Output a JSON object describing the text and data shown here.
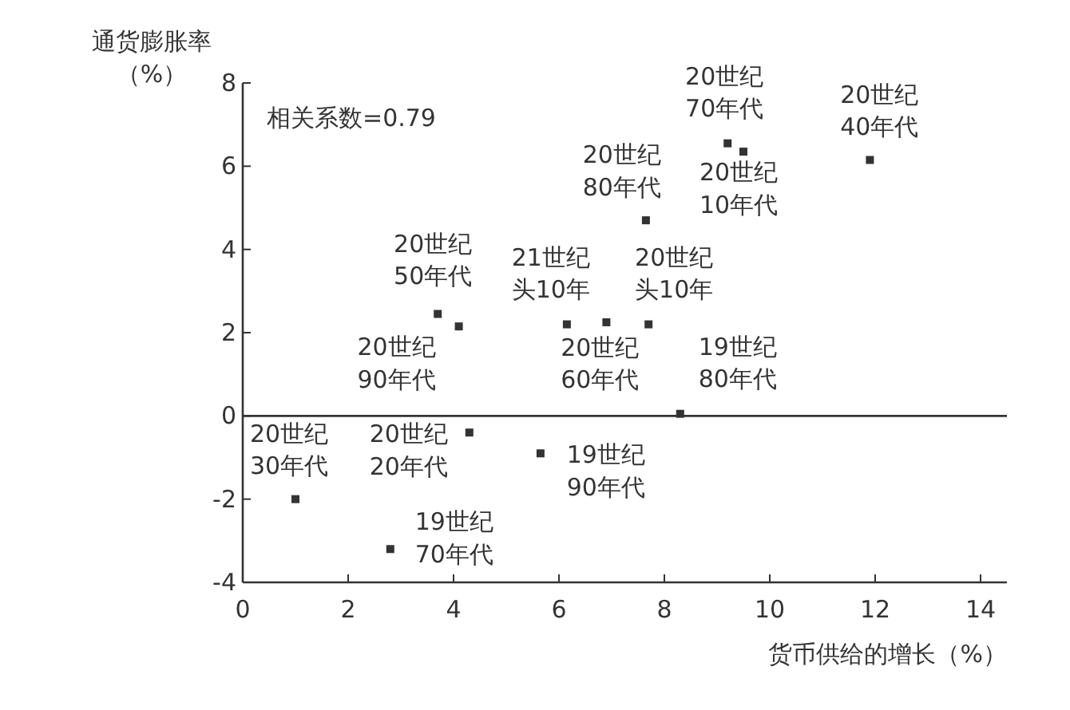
{
  "chart_data": {
    "type": "scatter",
    "xlabel": "货币供给的增长（%）",
    "ylabel": "通货膨胀率（%）",
    "x": [
      1.0,
      4.3,
      2.8,
      4.1,
      3.7,
      6.15,
      6.9,
      7.7,
      5.65,
      8.3,
      7.65,
      9.2,
      9.5,
      11.9
    ],
    "series": [
      {
        "color": "#333333",
        "values": [
          -2.0,
          -0.4,
          -3.2,
          2.15,
          2.45,
          2.2,
          2.25,
          2.2,
          -0.9,
          0.05,
          4.7,
          6.55,
          6.35,
          6.15
        ]
      }
    ],
    "marker": "square",
    "xlim": [
      0,
      14.5
    ],
    "xticks": [
      0,
      2,
      4,
      6,
      8,
      10,
      12,
      14
    ],
    "ylim": [
      -4,
      8
    ],
    "yticks": [
      -4,
      -2,
      0,
      2,
      4,
      6,
      8
    ],
    "grid": false,
    "ref_lines": [
      {
        "axis": "y",
        "value": 0
      }
    ],
    "annotations": [
      {
        "text": "20世纪30年代",
        "x": 1.0,
        "y": -2.0
      },
      {
        "text": "20世纪20年代",
        "x": 4.3,
        "y": -0.4
      },
      {
        "text": "19世纪70年代",
        "x": 2.8,
        "y": -3.2
      },
      {
        "text": "20世纪90年代",
        "x": 4.1,
        "y": 2.15
      },
      {
        "text": "20世纪50年代",
        "x": 3.7,
        "y": 2.45
      },
      {
        "text": "21世纪头10年",
        "x": 6.15,
        "y": 2.2
      },
      {
        "text": "20世纪60年代",
        "x": 6.9,
        "y": 2.25
      },
      {
        "text": "20世纪头10年",
        "x": 7.7,
        "y": 2.2
      },
      {
        "text": "19世纪90年代",
        "x": 5.65,
        "y": -0.9
      },
      {
        "text": "19世纪80年代",
        "x": 8.3,
        "y": 0.05
      },
      {
        "text": "20世纪80年代",
        "x": 7.65,
        "y": 4.7
      },
      {
        "text": "20世纪70年代",
        "x": 9.2,
        "y": 6.55
      },
      {
        "text": "20世纪10年代",
        "x": 9.5,
        "y": 6.35
      },
      {
        "text": "20世纪40年代",
        "x": 11.9,
        "y": 6.15
      },
      "相关系数=0.79"
    ]
  }
}
